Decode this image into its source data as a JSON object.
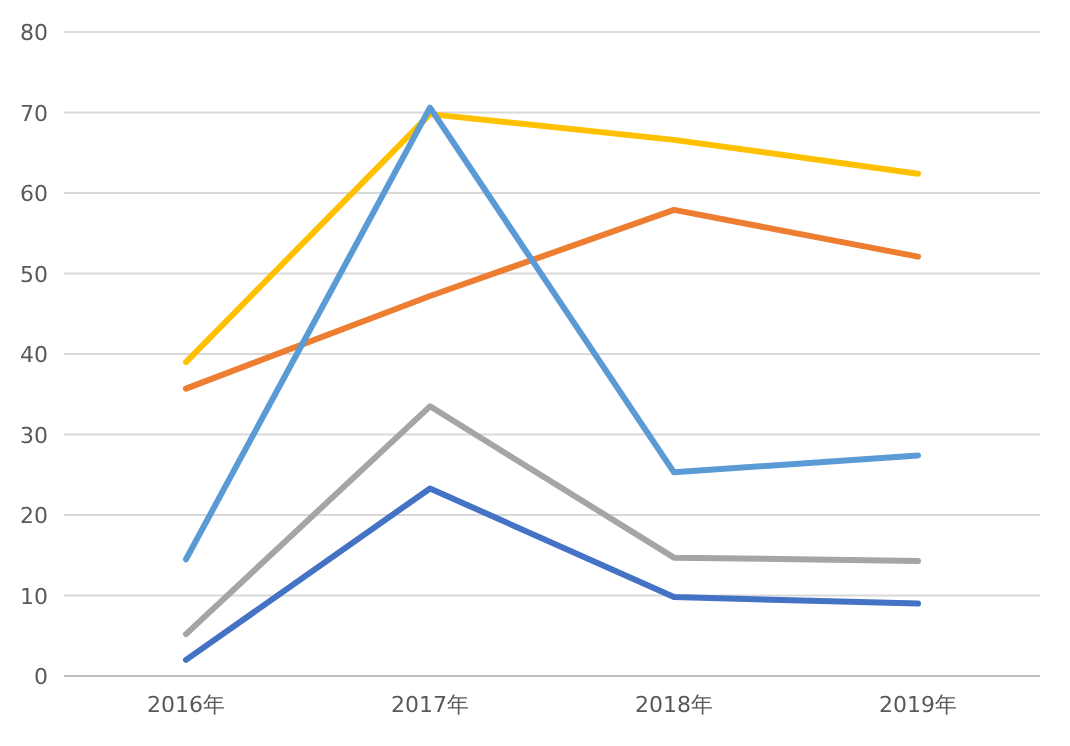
{
  "chart_data": {
    "type": "line",
    "categories": [
      "2016年",
      "2017年",
      "2018年",
      "2019年"
    ],
    "series": [
      {
        "color": "#4472c4",
        "values": [
          2,
          23.3,
          9.8,
          9.0
        ]
      },
      {
        "color": "#ed7d31",
        "values": [
          35.7,
          47.2,
          57.9,
          52.1
        ]
      },
      {
        "color": "#a5a5a5",
        "values": [
          5.2,
          33.5,
          14.7,
          14.3
        ]
      },
      {
        "color": "#ffc000",
        "values": [
          39,
          69.8,
          66.6,
          62.4
        ]
      },
      {
        "color": "#5b9bd5",
        "values": [
          14.5,
          70.6,
          25.3,
          27.4
        ]
      }
    ],
    "ylim": [
      0,
      80
    ],
    "yticks": [
      0,
      10,
      20,
      30,
      40,
      50,
      60,
      70,
      80
    ],
    "grid": "y"
  }
}
